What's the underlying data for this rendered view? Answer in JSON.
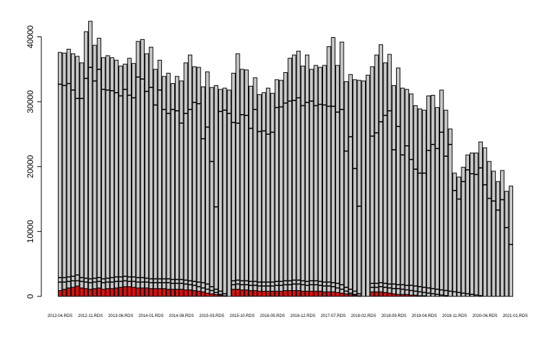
{
  "chart_data": {
    "type": "bar",
    "stacked": true,
    "ylim": [
      0,
      42500
    ],
    "yticks": [
      0,
      10000,
      20000,
      30000,
      40000
    ],
    "category_labels": [
      "2012-04.RDS",
      "2012-11.RDS",
      "2013-06.RDS",
      "2014-01.RDS",
      "2014-08.RDS",
      "2015-03.RDS",
      "2015-10.RDS",
      "2016-05.RDS",
      "2016-12.RDS",
      "2017-07.RDS",
      "2018-02.RDS",
      "2018-09.RDS",
      "2019-04.RDS",
      "2019-11.RDS",
      "2020-06.RDS",
      "2021-01.RDS"
    ],
    "label_every": 7,
    "totals": [
      37600,
      37500,
      38100,
      37400,
      37000,
      36000,
      40800,
      42400,
      38700,
      39800,
      36800,
      37100,
      36800,
      36400,
      35500,
      35800,
      36700,
      35900,
      39300,
      39600,
      37400,
      38400,
      35000,
      36400,
      33900,
      34400,
      32800,
      33900,
      33200,
      36000,
      37200,
      35400,
      35300,
      32300,
      34600,
      32200,
      32500,
      31900,
      32100,
      31800,
      34400,
      37400,
      35000,
      34900,
      32400,
      33700,
      31100,
      31400,
      32100,
      31300,
      33400,
      33300,
      34500,
      36700,
      37200,
      37800,
      35500,
      37200,
      35000,
      35600,
      35300,
      35600,
      38500,
      39900,
      35600,
      39200,
      33100,
      34200,
      33400,
      33300,
      33200,
      34100,
      35400,
      37200,
      38800,
      36000,
      37300,
      32500,
      35200,
      32100,
      31900,
      31200,
      29400,
      28900,
      28700,
      30900,
      31000,
      29100,
      31800,
      28700,
      25800,
      19000,
      18400,
      19900,
      21800,
      22100,
      22100,
      23800,
      22900,
      20800,
      19300,
      17700,
      19400,
      16200,
      17000
    ],
    "series": [
      {
        "name": "",
        "color": "#dc1111",
        "values": [
          900,
          1100,
          1300,
          1400,
          1600,
          1300,
          1200,
          1100,
          1200,
          1300,
          1100,
          1200,
          1200,
          1300,
          1400,
          1500,
          1500,
          1400,
          1300,
          1300,
          1300,
          1200,
          1200,
          1200,
          1200,
          1100,
          1100,
          1100,
          1100,
          1000,
          1000,
          900,
          800,
          700,
          500,
          400,
          300,
          200,
          100,
          0,
          1100,
          1100,
          1000,
          1000,
          900,
          900,
          800,
          800,
          800,
          800,
          800,
          800,
          900,
          900,
          900,
          900,
          800,
          800,
          800,
          800,
          800,
          700,
          700,
          700,
          600,
          500,
          400,
          300,
          200,
          100,
          0,
          0,
          700,
          700,
          700,
          600,
          500,
          400,
          300,
          300,
          300,
          200,
          200,
          100,
          100,
          0,
          0,
          0,
          0,
          0,
          0,
          0,
          0,
          0,
          0,
          0,
          0,
          0,
          0,
          0,
          0,
          0,
          0,
          0,
          0
        ]
      },
      {
        "name": "",
        "color": "#c8c8c8",
        "values": [
          36700,
          36400,
          36800,
          36000,
          35400,
          34700,
          39600,
          41300,
          37500,
          38500,
          35700,
          35900,
          35600,
          35100,
          34100,
          34300,
          35200,
          34500,
          38000,
          38300,
          36100,
          37200,
          33800,
          35200,
          32700,
          33300,
          31700,
          32800,
          32100,
          35000,
          36200,
          34500,
          34500,
          31600,
          34100,
          31800,
          32200,
          31700,
          32000,
          31800,
          33300,
          36300,
          34000,
          33900,
          31500,
          32800,
          30300,
          30600,
          31300,
          30500,
          32600,
          32500,
          33600,
          35800,
          36300,
          36900,
          34700,
          36400,
          34200,
          34800,
          34500,
          34900,
          37800,
          39200,
          35000,
          38700,
          32700,
          33900,
          33200,
          33200,
          33200,
          34100,
          34700,
          36500,
          38100,
          35400,
          36800,
          32100,
          34900,
          31800,
          31600,
          31000,
          29200,
          28800,
          28600,
          30900,
          31000,
          29100,
          31800,
          28700,
          25800,
          19000,
          18400,
          19900,
          21800,
          22100,
          22100,
          23800,
          22900,
          20800,
          19300,
          17700,
          19400,
          16200,
          17000
        ]
      }
    ],
    "segment_lines": [
      [
        32700,
        2900,
        2200
      ],
      [
        32500,
        2900,
        2200
      ],
      [
        32800,
        3000,
        2300
      ],
      [
        31800,
        3100,
        2400
      ],
      [
        30500,
        3300,
        2400
      ],
      [
        30500,
        2900,
        2300
      ],
      [
        33600,
        2800,
        2200
      ],
      [
        35300,
        2700,
        2100
      ],
      [
        33200,
        2800,
        2200
      ],
      [
        35000,
        2900,
        2300
      ],
      [
        31900,
        2700,
        2100
      ],
      [
        31800,
        2800,
        2200
      ],
      [
        31700,
        2900,
        2200
      ],
      [
        31400,
        3000,
        2300
      ],
      [
        30900,
        3000,
        2300
      ],
      [
        31900,
        3100,
        2400
      ],
      [
        31000,
        3000,
        2300
      ],
      [
        30600,
        3000,
        2300
      ],
      [
        33800,
        2900,
        2200
      ],
      [
        33500,
        2900,
        2200
      ],
      [
        31600,
        2800,
        2200
      ],
      [
        32200,
        2700,
        2100
      ],
      [
        29500,
        2700,
        2100
      ],
      [
        31800,
        2700,
        2100
      ],
      [
        28800,
        2700,
        2100
      ],
      [
        28200,
        2700,
        2100
      ],
      [
        28800,
        2600,
        2000
      ],
      [
        28600,
        2600,
        2000
      ],
      [
        26700,
        2600,
        2000
      ],
      [
        28200,
        2500,
        1900
      ],
      [
        28800,
        2400,
        1800
      ],
      [
        29900,
        2300,
        1700
      ],
      [
        29700,
        2200,
        1500
      ],
      [
        24300,
        2100,
        1300
      ],
      [
        26100,
        1900,
        1100
      ],
      [
        20800,
        1500,
        900
      ],
      [
        13800,
        1100,
        600
      ],
      [
        28500,
        800,
        300
      ],
      [
        28700,
        400,
        0
      ],
      [
        28200,
        0,
        0
      ],
      [
        26800,
        2400,
        1800
      ],
      [
        26700,
        2500,
        1900
      ],
      [
        28000,
        2400,
        1800
      ],
      [
        27900,
        2400,
        1800
      ],
      [
        25900,
        2300,
        1700
      ],
      [
        28800,
        2300,
        1700
      ],
      [
        25400,
        2200,
        1600
      ],
      [
        25500,
        2200,
        1600
      ],
      [
        25000,
        2200,
        1600
      ],
      [
        25300,
        2200,
        1600
      ],
      [
        29100,
        2300,
        1700
      ],
      [
        29200,
        2300,
        1700
      ],
      [
        29800,
        2400,
        1800
      ],
      [
        30100,
        2400,
        1800
      ],
      [
        30200,
        2500,
        1900
      ],
      [
        30600,
        2500,
        1900
      ],
      [
        29400,
        2400,
        1800
      ],
      [
        29900,
        2300,
        1700
      ],
      [
        30100,
        2400,
        1800
      ],
      [
        29400,
        2400,
        1800
      ],
      [
        29600,
        2300,
        1700
      ],
      [
        29500,
        2200,
        1600
      ],
      [
        29300,
        2200,
        1600
      ],
      [
        29300,
        2100,
        1500
      ],
      [
        28400,
        2000,
        1300
      ],
      [
        28800,
        1800,
        1100
      ],
      [
        22400,
        1400,
        800
      ],
      [
        24600,
        1100,
        500
      ],
      [
        19700,
        800,
        300
      ],
      [
        13900,
        400,
        0
      ],
      [
        0,
        0,
        0
      ],
      [
        0,
        0,
        0
      ],
      [
        24700,
        2000,
        1400
      ],
      [
        25200,
        2000,
        1400
      ],
      [
        26900,
        2100,
        1500
      ],
      [
        27900,
        2000,
        1400
      ],
      [
        28600,
        1900,
        1300
      ],
      [
        22600,
        1900,
        1200
      ],
      [
        26200,
        1800,
        1200
      ],
      [
        21800,
        1800,
        1100
      ],
      [
        23200,
        1700,
        1000
      ],
      [
        21100,
        1700,
        900
      ],
      [
        19600,
        1600,
        800
      ],
      [
        19000,
        1500,
        700
      ],
      [
        19000,
        1400,
        600
      ],
      [
        22500,
        1300,
        500
      ],
      [
        23400,
        1200,
        400
      ],
      [
        22800,
        1100,
        300
      ],
      [
        25300,
        1000,
        200
      ],
      [
        21600,
        900,
        100
      ],
      [
        23400,
        800,
        0
      ],
      [
        16300,
        700,
        0
      ],
      [
        15000,
        600,
        0
      ],
      [
        17700,
        500,
        0
      ],
      [
        19500,
        400,
        0
      ],
      [
        18900,
        300,
        0
      ],
      [
        18800,
        200,
        0
      ],
      [
        19800,
        100,
        0
      ],
      [
        17200,
        0,
        0
      ],
      [
        15100,
        0,
        0
      ],
      [
        14700,
        0,
        0
      ],
      [
        13300,
        0,
        0
      ],
      [
        14900,
        0,
        0
      ],
      [
        10600,
        0,
        0
      ],
      [
        8000,
        0,
        0
      ]
    ]
  }
}
